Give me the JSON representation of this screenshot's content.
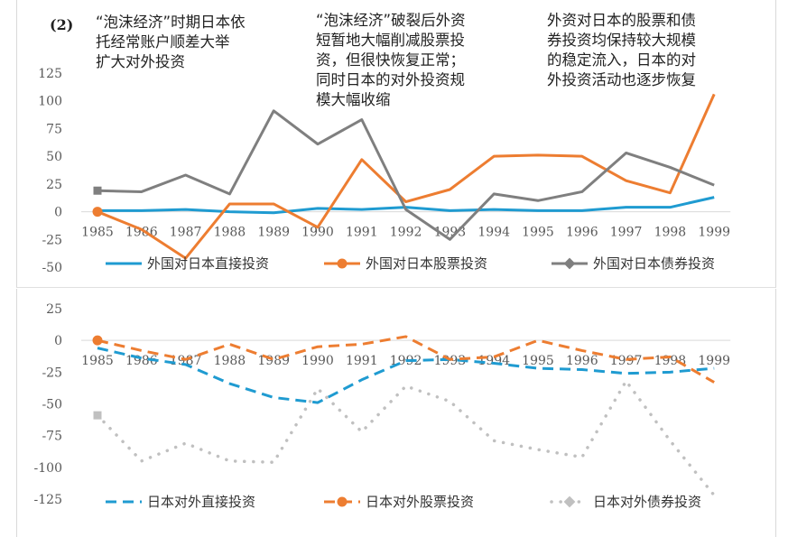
{
  "panel_label": "(2)",
  "annotations": [
    "“泡沫经济”时期日本依\n托经常账户顺差大举\n扩大对外投资",
    "“泡沫经济”破裂后外资\n短暂地大幅削减股票投\n资，但很快恢复正常；\n同时日本的对外投资规\n模大幅收缩",
    "外资对日本的股票和债\n券投资均保持较大规模\n的稳定流入，日本的对\n外投资活动也逐步恢复"
  ],
  "colors": {
    "blue": "#1f9bd1",
    "orange": "#ed7d31",
    "gray": "#7f7f7f",
    "lightgray": "#c0c0c0",
    "axis": "#d9d9d9"
  },
  "chart_data": [
    {
      "type": "line",
      "title": "",
      "x": [
        "1985",
        "1986",
        "1987",
        "1988",
        "1989",
        "1990",
        "1991",
        "1992",
        "1993",
        "1994",
        "1995",
        "1996",
        "1997",
        "1998",
        "1999"
      ],
      "ylim": [
        -50,
        125
      ],
      "yticks": [
        125,
        100,
        75,
        50,
        25,
        0,
        -25,
        -50
      ],
      "legend_position": "bottom",
      "series": [
        {
          "name": "外国对日本直接投资",
          "values": [
            1,
            1,
            2,
            0,
            -1,
            3,
            2,
            4,
            1,
            2,
            1,
            1,
            4,
            4,
            13
          ]
        },
        {
          "name": "外国对日本股票投资",
          "values": [
            0,
            -16,
            -42,
            7,
            7,
            -14,
            47,
            9,
            20,
            50,
            51,
            50,
            28,
            17,
            106
          ]
        },
        {
          "name": "外国对日本债券投资",
          "values": [
            19,
            18,
            33,
            16,
            91,
            61,
            83,
            2,
            -25,
            16,
            10,
            18,
            53,
            40,
            24
          ]
        }
      ]
    },
    {
      "type": "line",
      "title": "",
      "x": [
        "1985",
        "1986",
        "1987",
        "1988",
        "1989",
        "1990",
        "1991",
        "1992",
        "1993",
        "1994",
        "1995",
        "1996",
        "1997",
        "1998",
        "1999"
      ],
      "ylim": [
        -125,
        25
      ],
      "yticks": [
        25,
        0,
        -25,
        -50,
        -75,
        -100,
        -125
      ],
      "legend_position": "bottom",
      "series": [
        {
          "name": "日本对外直接投资",
          "values": [
            -6,
            -14,
            -19,
            -34,
            -45,
            -49,
            -31,
            -16,
            -15,
            -18,
            -22,
            -23,
            -26,
            -25,
            -22
          ]
        },
        {
          "name": "日本对外股票投资",
          "values": [
            0,
            -8,
            -15,
            -3,
            -15,
            -5,
            -3,
            3,
            -15,
            -13,
            0,
            -8,
            -15,
            -13,
            -33
          ]
        },
        {
          "name": "日本对外债券投资",
          "values": [
            -59,
            -95,
            -81,
            -95,
            -96,
            -38,
            -72,
            -36,
            -48,
            -79,
            -86,
            -92,
            -32,
            -79,
            -122
          ]
        }
      ]
    }
  ]
}
